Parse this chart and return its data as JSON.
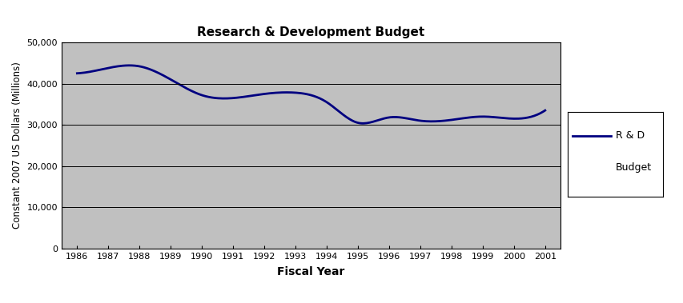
{
  "title": "Research & Development Budget",
  "xlabel": "Fiscal Year",
  "ylabel": "Constant 2007 US Dollars (Millions)",
  "legend_label": "R & D\nBudget",
  "years": [
    1986,
    1987,
    1988,
    1989,
    1990,
    1991,
    1992,
    1993,
    1994,
    1995,
    1996,
    1997,
    1998,
    1999,
    2000,
    2001
  ],
  "values": [
    42500,
    43800,
    44200,
    41000,
    37200,
    36500,
    37500,
    37800,
    35500,
    30500,
    31800,
    31000,
    31200,
    32000,
    31500,
    33500
  ],
  "line_color": "#000080",
  "line_width": 2.0,
  "plot_bg_color": "#c0c0c0",
  "fig_bg_color": "#ffffff",
  "ylim": [
    0,
    50000
  ],
  "yticks": [
    0,
    10000,
    20000,
    30000,
    40000,
    50000
  ],
  "ytick_labels": [
    "0",
    "10,000",
    "20,000",
    "30,000",
    "40,000",
    "50,000"
  ],
  "title_fontsize": 11,
  "axis_label_fontsize": 10,
  "tick_fontsize": 8,
  "legend_fontsize": 9
}
